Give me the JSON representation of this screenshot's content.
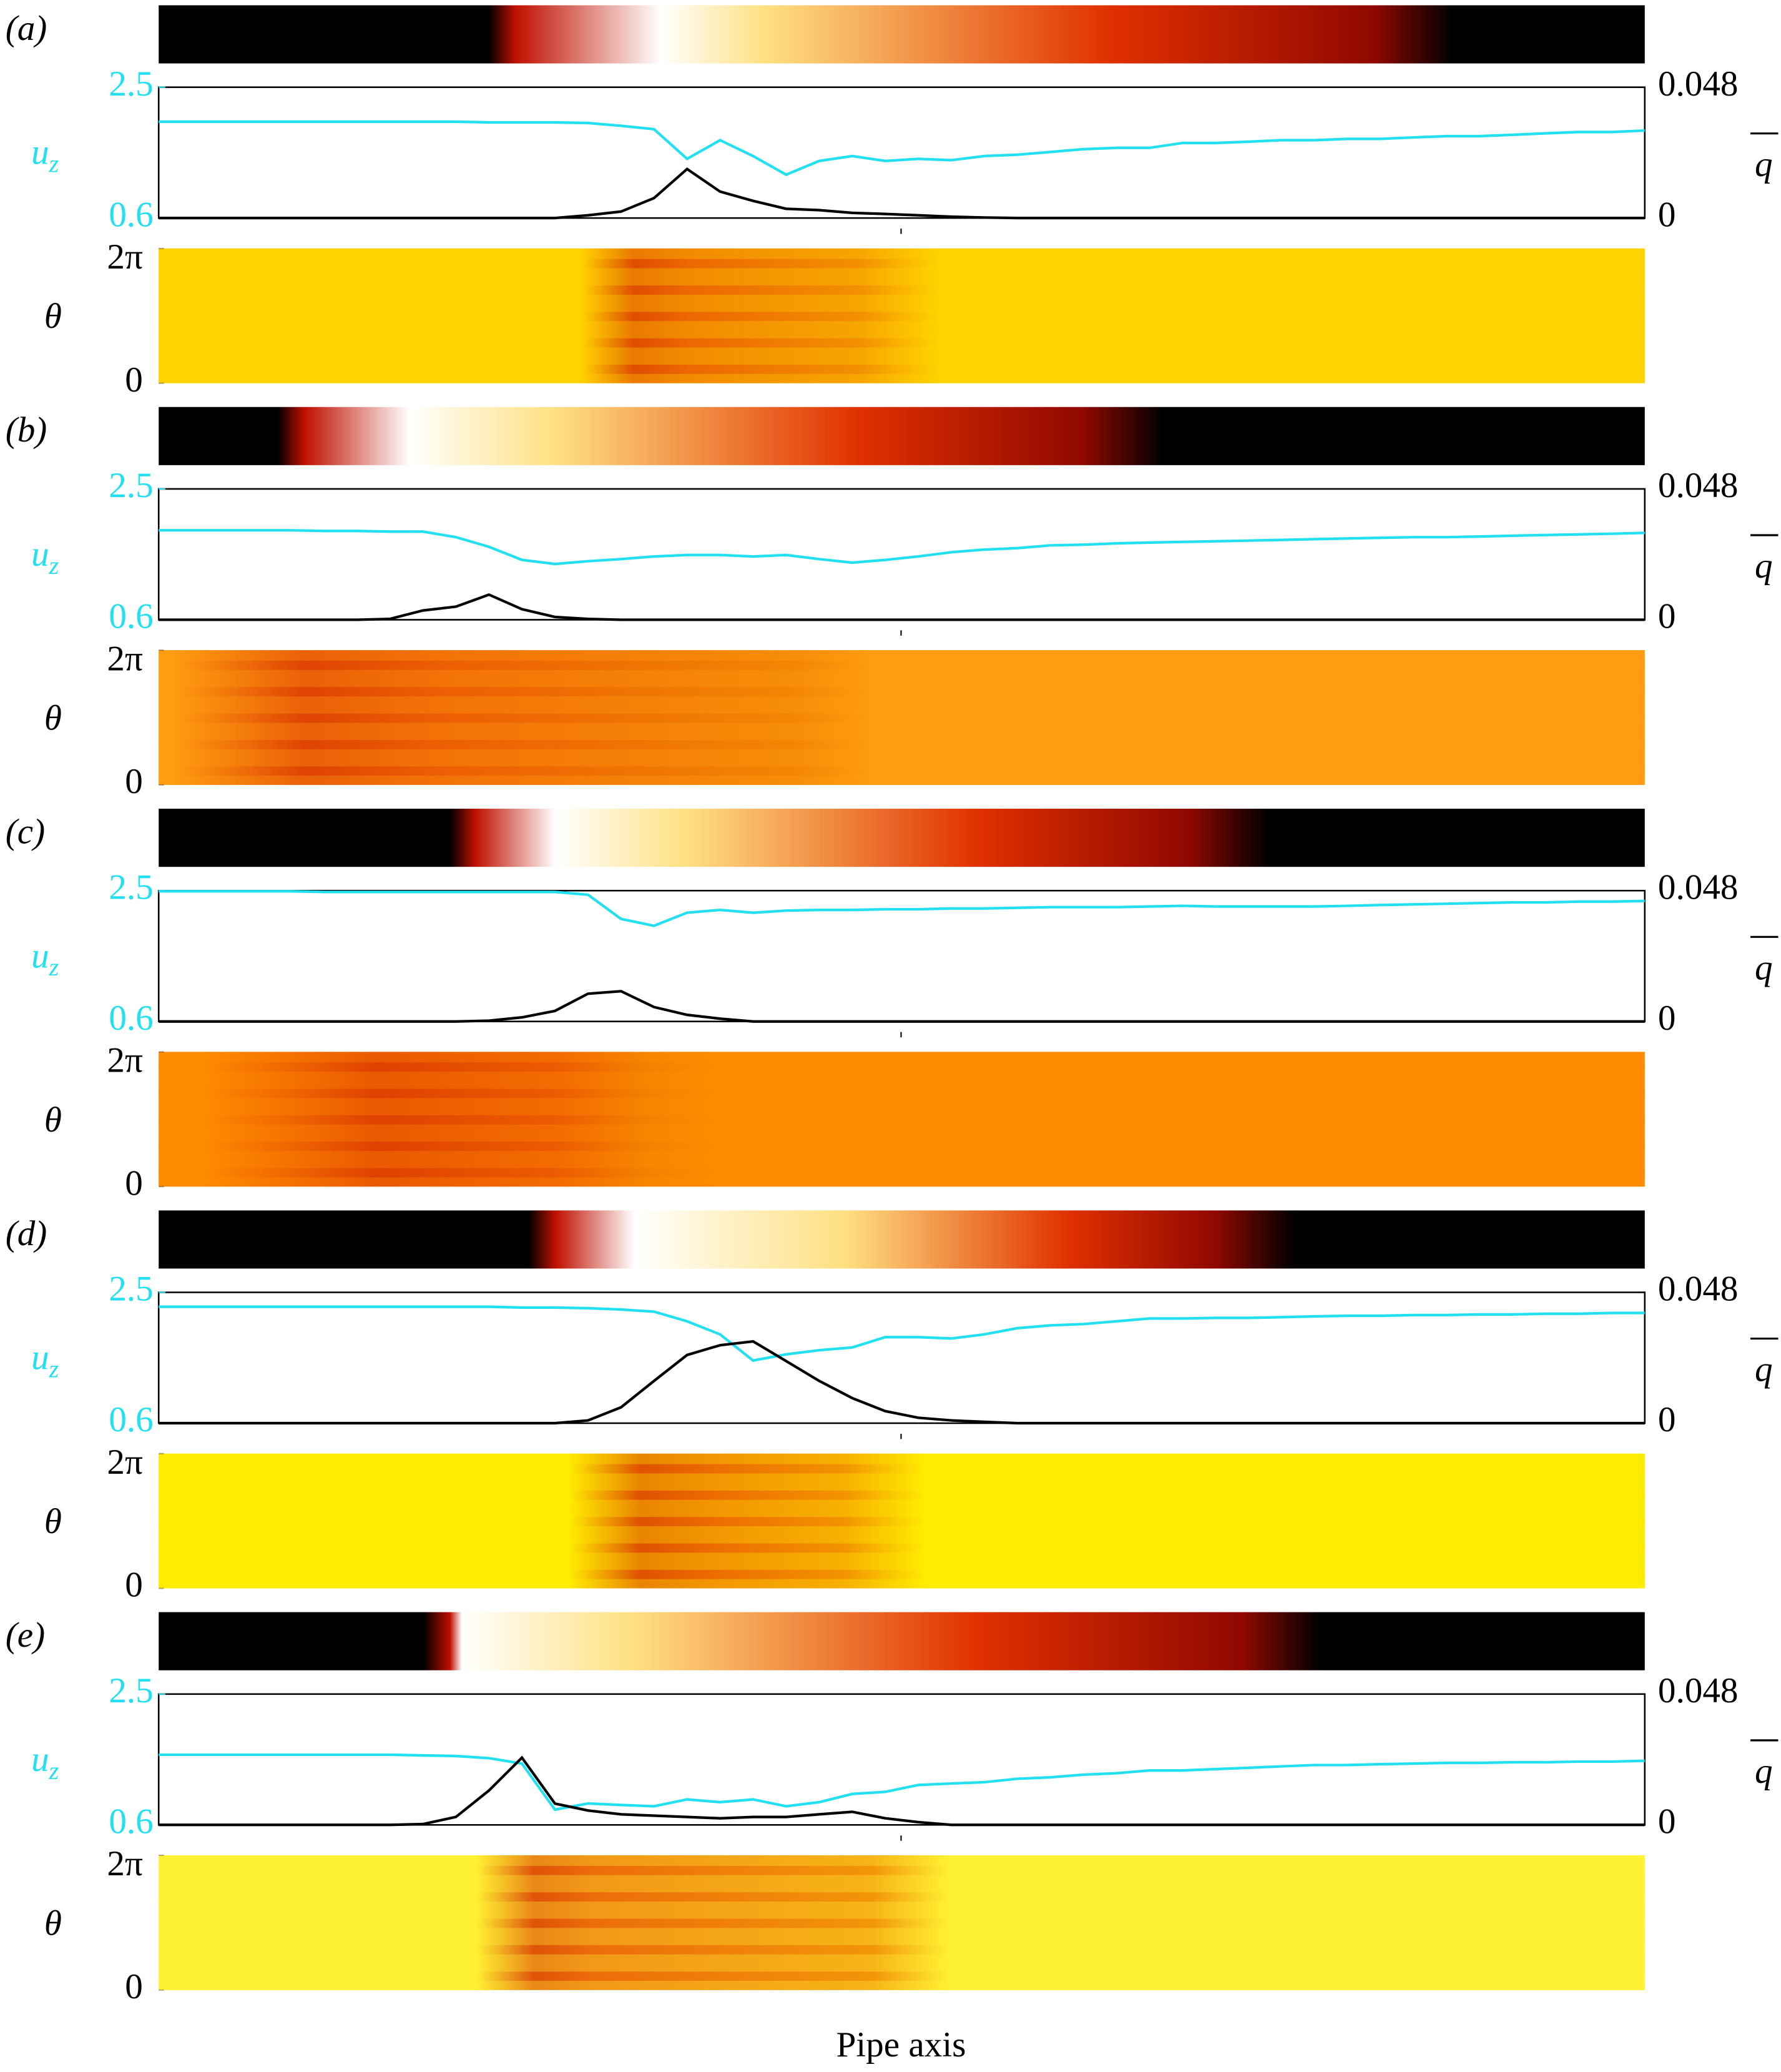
{
  "chart_data": [
    {
      "type": "line",
      "panel_label": "(a)",
      "y_label": "u",
      "y_label_sub": "z",
      "y2_label": "q",
      "theta_label": "θ",
      "ylim": [
        0.6,
        2.5
      ],
      "yticks": [
        2.5,
        0.6
      ],
      "y2lim": [
        0,
        0.048
      ],
      "y2ticks": [
        0.048,
        0
      ],
      "theta_lim": [
        0,
        6.2832
      ],
      "theta_ticks": [
        {
          "value": 6.2832,
          "label": "2π"
        },
        0
      ],
      "series": [
        {
          "color": "#22e0f0",
          "values": [
            2.0,
            2.0,
            2.0,
            2.0,
            2.0,
            2.0,
            2.0,
            2.0,
            2.0,
            2.0,
            1.99,
            1.99,
            1.99,
            1.98,
            1.94,
            1.89,
            1.46,
            1.73,
            1.5,
            1.23,
            1.43,
            1.5,
            1.43,
            1.46,
            1.44,
            1.5,
            1.52,
            1.56,
            1.6,
            1.62,
            1.62,
            1.69,
            1.69,
            1.71,
            1.73,
            1.73,
            1.75,
            1.75,
            1.77,
            1.79,
            1.79,
            1.81,
            1.83,
            1.85,
            1.85,
            1.87
          ]
        },
        {
          "color": "#000000",
          "axis": "y2",
          "values": [
            0,
            0,
            0,
            0,
            0,
            0,
            0,
            0,
            0,
            0,
            0,
            0,
            0,
            0.001,
            0.0024,
            0.0073,
            0.018,
            0.0097,
            0.0063,
            0.0034,
            0.0029,
            0.0019,
            0.0015,
            0.001,
            0.0005,
            0.0002,
            0,
            0,
            0,
            0,
            0,
            0,
            0,
            0,
            0,
            0,
            0,
            0,
            0,
            0,
            0,
            0,
            0,
            0,
            0,
            0
          ]
        }
      ]
    },
    {
      "type": "line",
      "panel_label": "(b)",
      "y_label": "u",
      "y_label_sub": "z",
      "y2_label": "q",
      "theta_label": "θ",
      "ylim": [
        0.6,
        2.5
      ],
      "yticks": [
        2.5,
        0.6
      ],
      "y2lim": [
        0,
        0.048
      ],
      "y2ticks": [
        0.048,
        0
      ],
      "theta_lim": [
        0,
        6.2832
      ],
      "theta_ticks": [
        {
          "value": 6.2832,
          "label": "2π"
        },
        0
      ],
      "series": [
        {
          "color": "#22e0f0",
          "values": [
            1.9,
            1.9,
            1.9,
            1.9,
            1.9,
            1.89,
            1.89,
            1.88,
            1.88,
            1.8,
            1.66,
            1.47,
            1.41,
            1.45,
            1.48,
            1.52,
            1.54,
            1.54,
            1.52,
            1.54,
            1.48,
            1.43,
            1.47,
            1.52,
            1.58,
            1.62,
            1.64,
            1.68,
            1.69,
            1.71,
            1.72,
            1.73,
            1.74,
            1.75,
            1.76,
            1.77,
            1.78,
            1.79,
            1.8,
            1.8,
            1.81,
            1.82,
            1.83,
            1.84,
            1.85,
            1.86
          ]
        },
        {
          "color": "#000000",
          "axis": "y2",
          "values": [
            0,
            0,
            0,
            0,
            0,
            0,
            0,
            0.0003,
            0.0034,
            0.0048,
            0.0092,
            0.0039,
            0.001,
            0.0003,
            0,
            0,
            0,
            0,
            0,
            0,
            0,
            0,
            0,
            0,
            0,
            0,
            0,
            0,
            0,
            0,
            0,
            0,
            0,
            0,
            0,
            0,
            0,
            0,
            0,
            0,
            0,
            0,
            0,
            0,
            0,
            0
          ]
        }
      ]
    },
    {
      "type": "line",
      "panel_label": "(c)",
      "y_label": "u",
      "y_label_sub": "z",
      "y2_label": "q",
      "theta_label": "θ",
      "ylim": [
        0.6,
        2.5
      ],
      "yticks": [
        2.5,
        0.6
      ],
      "y2lim": [
        0,
        0.048
      ],
      "y2ticks": [
        0.048,
        0
      ],
      "theta_lim": [
        0,
        6.2832
      ],
      "theta_ticks": [
        {
          "value": 6.2832,
          "label": "2π"
        },
        0
      ],
      "series": [
        {
          "color": "#22e0f0",
          "values": [
            2.49,
            2.49,
            2.49,
            2.49,
            2.49,
            2.48,
            2.48,
            2.48,
            2.48,
            2.48,
            2.48,
            2.48,
            2.48,
            2.44,
            2.09,
            1.99,
            2.18,
            2.22,
            2.18,
            2.21,
            2.22,
            2.22,
            2.23,
            2.23,
            2.24,
            2.24,
            2.25,
            2.26,
            2.26,
            2.26,
            2.27,
            2.28,
            2.27,
            2.27,
            2.27,
            2.27,
            2.28,
            2.29,
            2.3,
            2.31,
            2.32,
            2.33,
            2.33,
            2.34,
            2.34,
            2.35
          ]
        },
        {
          "color": "#000000",
          "axis": "y2",
          "values": [
            0,
            0,
            0,
            0,
            0,
            0,
            0,
            0,
            0,
            0,
            0.0003,
            0.0015,
            0.0039,
            0.0102,
            0.0111,
            0.0053,
            0.0024,
            0.001,
            0,
            0,
            0,
            0,
            0,
            0,
            0,
            0,
            0,
            0,
            0,
            0,
            0,
            0,
            0,
            0,
            0,
            0,
            0,
            0,
            0,
            0,
            0,
            0,
            0,
            0,
            0,
            0
          ]
        }
      ]
    },
    {
      "type": "line",
      "panel_label": "(d)",
      "y_label": "u",
      "y_label_sub": "z",
      "y2_label": "q",
      "theta_label": "θ",
      "ylim": [
        0.6,
        2.5
      ],
      "yticks": [
        2.5,
        0.6
      ],
      "y2lim": [
        0,
        0.048
      ],
      "y2ticks": [
        0.048,
        0
      ],
      "theta_lim": [
        0,
        6.2832
      ],
      "theta_ticks": [
        {
          "value": 6.2832,
          "label": "2π"
        },
        0
      ],
      "series": [
        {
          "color": "#22e0f0",
          "values": [
            2.29,
            2.29,
            2.29,
            2.29,
            2.29,
            2.29,
            2.29,
            2.29,
            2.29,
            2.29,
            2.29,
            2.28,
            2.28,
            2.27,
            2.25,
            2.22,
            2.08,
            1.89,
            1.51,
            1.6,
            1.66,
            1.7,
            1.85,
            1.85,
            1.83,
            1.89,
            1.98,
            2.02,
            2.04,
            2.08,
            2.12,
            2.12,
            2.13,
            2.13,
            2.14,
            2.15,
            2.16,
            2.16,
            2.17,
            2.17,
            2.18,
            2.18,
            2.19,
            2.19,
            2.2,
            2.2
          ]
        },
        {
          "color": "#000000",
          "axis": "y2",
          "values": [
            0,
            0,
            0,
            0,
            0,
            0,
            0,
            0,
            0,
            0,
            0,
            0,
            0,
            0.001,
            0.0058,
            0.0155,
            0.025,
            0.0286,
            0.03,
            0.0228,
            0.0155,
            0.0092,
            0.0044,
            0.002,
            0.001,
            0.0005,
            0,
            0,
            0,
            0,
            0,
            0,
            0,
            0,
            0,
            0,
            0,
            0,
            0,
            0,
            0,
            0,
            0,
            0,
            0,
            0
          ]
        }
      ]
    },
    {
      "type": "line",
      "panel_label": "(e)",
      "y_label": "u",
      "y_label_sub": "z",
      "y2_label": "q",
      "theta_label": "θ",
      "ylim": [
        0.6,
        2.5
      ],
      "yticks": [
        2.5,
        0.6
      ],
      "y2lim": [
        0,
        0.048
      ],
      "y2ticks": [
        0.048,
        0
      ],
      "theta_lim": [
        0,
        6.2832
      ],
      "theta_ticks": [
        {
          "value": 6.2832,
          "label": "2π"
        },
        0
      ],
      "x_label": "Pipe axis",
      "series": [
        {
          "color": "#22e0f0",
          "values": [
            1.62,
            1.62,
            1.62,
            1.62,
            1.62,
            1.62,
            1.62,
            1.62,
            1.61,
            1.6,
            1.57,
            1.49,
            0.82,
            0.91,
            0.89,
            0.87,
            0.97,
            0.93,
            0.97,
            0.87,
            0.93,
            1.05,
            1.08,
            1.18,
            1.2,
            1.22,
            1.27,
            1.29,
            1.33,
            1.35,
            1.39,
            1.39,
            1.41,
            1.43,
            1.45,
            1.47,
            1.47,
            1.48,
            1.49,
            1.5,
            1.5,
            1.51,
            1.51,
            1.52,
            1.52,
            1.53
          ]
        },
        {
          "color": "#000000",
          "axis": "y2",
          "values": [
            0,
            0,
            0,
            0,
            0,
            0,
            0,
            0,
            0.0003,
            0.0029,
            0.0126,
            0.0247,
            0.0078,
            0.0053,
            0.0039,
            0.0034,
            0.0029,
            0.0024,
            0.0029,
            0.0029,
            0.0039,
            0.0048,
            0.0024,
            0.001,
            0,
            0,
            0,
            0,
            0,
            0,
            0,
            0,
            0,
            0,
            0,
            0,
            0,
            0,
            0,
            0,
            0,
            0,
            0,
            0,
            0,
            0
          ]
        }
      ]
    }
  ]
}
